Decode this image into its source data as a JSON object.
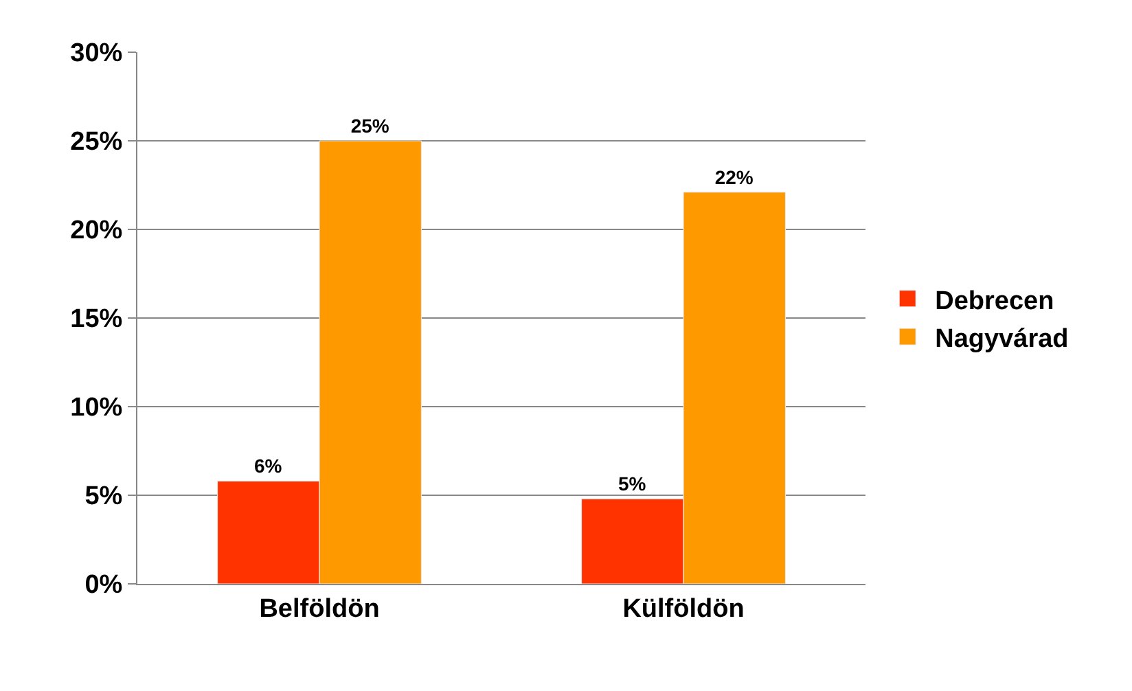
{
  "chart_data": {
    "type": "bar",
    "categories": [
      "Belföldön",
      "Külföldön"
    ],
    "series": [
      {
        "name": "Debrecen",
        "color": "#ff3300",
        "values": [
          5.8,
          4.8
        ],
        "value_labels": [
          "6%",
          "5%"
        ]
      },
      {
        "name": "Nagyvárad",
        "color": "#ff9900",
        "values": [
          25,
          22.1
        ],
        "value_labels": [
          "25%",
          "22%"
        ]
      }
    ],
    "ylim": [
      0,
      30
    ],
    "yticks": [
      {
        "value": 0,
        "label": "0%"
      },
      {
        "value": 5,
        "label": "5%"
      },
      {
        "value": 10,
        "label": "10%"
      },
      {
        "value": 15,
        "label": "15%"
      },
      {
        "value": 20,
        "label": "20%"
      },
      {
        "value": 25,
        "label": "25%"
      },
      {
        "value": 30,
        "label": "30%"
      }
    ],
    "grid": "y",
    "legend": "right"
  }
}
